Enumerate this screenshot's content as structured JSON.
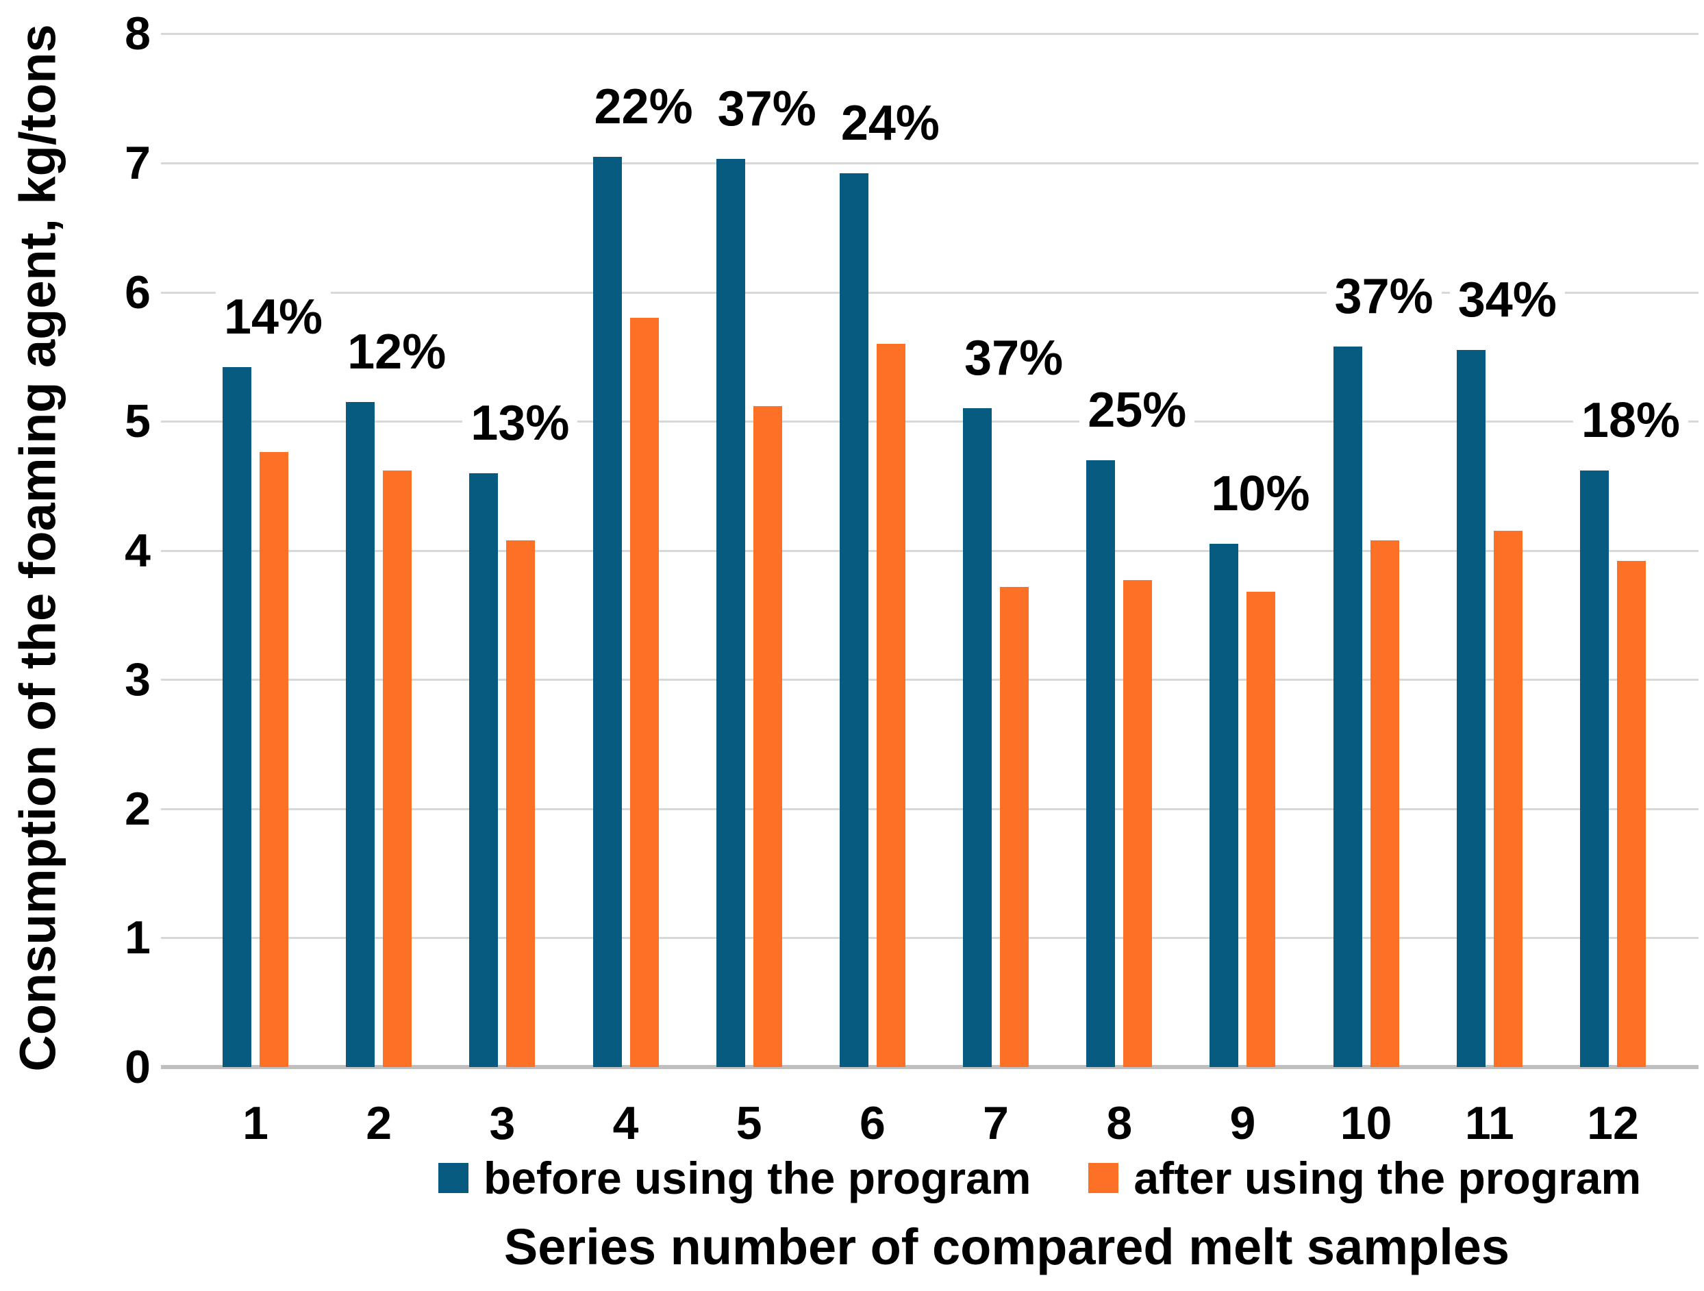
{
  "chart_data": {
    "type": "bar",
    "title": "",
    "xlabel": "Series number of compared melt samples",
    "ylabel": "Consumption of the foaming agent, kg/tons",
    "categories": [
      "1",
      "2",
      "3",
      "4",
      "5",
      "6",
      "7",
      "8",
      "9",
      "10",
      "11",
      "12"
    ],
    "series": [
      {
        "name": "before using the program",
        "color": "#075A80",
        "values": [
          5.42,
          5.15,
          4.6,
          7.05,
          7.03,
          6.92,
          5.1,
          4.7,
          4.05,
          5.58,
          5.55,
          4.62
        ]
      },
      {
        "name": "after using the program",
        "color": "#FC7126",
        "values": [
          4.76,
          4.62,
          4.08,
          5.8,
          5.12,
          5.6,
          3.72,
          3.77,
          3.68,
          4.08,
          4.15,
          3.92
        ]
      }
    ],
    "bar_pair_labels": [
      "14%",
      "12%",
      "13%",
      "22%",
      "37%",
      "24%",
      "37%",
      "25%",
      "10%",
      "37%",
      "34%",
      "18%"
    ],
    "ylim": [
      0,
      8
    ],
    "yticks": [
      0,
      1,
      2,
      3,
      4,
      5,
      6,
      7,
      8
    ],
    "grid": true,
    "gridline_color": "#D8D8D8",
    "axis_line_color": "#BFBFBF",
    "legend_position": "bottom"
  }
}
